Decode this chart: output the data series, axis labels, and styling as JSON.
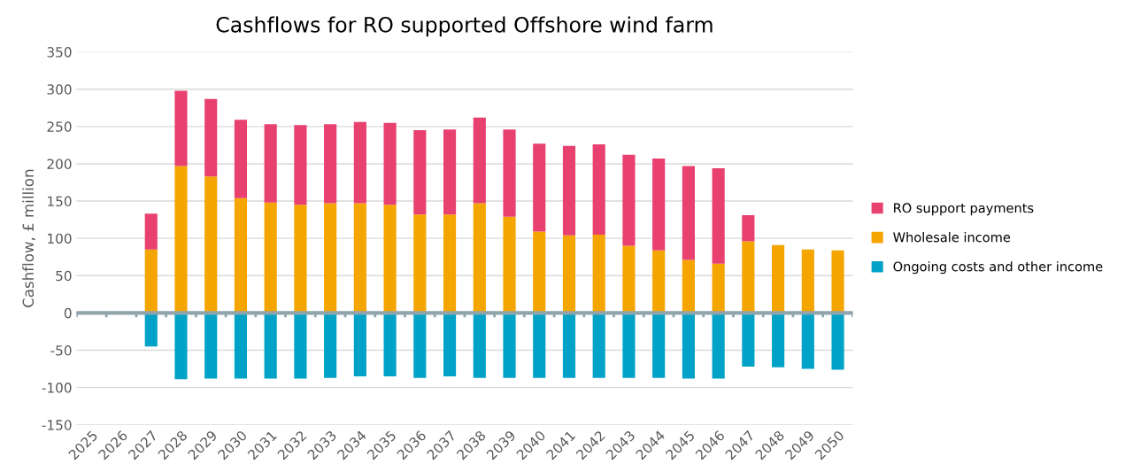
{
  "chart_data": {
    "type": "bar",
    "title": "Cashflows for RO supported Offshore wind farm",
    "ylabel": "Cashflow, £ million",
    "stacked": true,
    "categories": [
      "2025",
      "2026",
      "2027",
      "2028",
      "2029",
      "2030",
      "2031",
      "2032",
      "2033",
      "2034",
      "2035",
      "2036",
      "2037",
      "2038",
      "2039",
      "2040",
      "2041",
      "2042",
      "2043",
      "2044",
      "2045",
      "2046",
      "2047",
      "2048",
      "2049",
      "2050"
    ],
    "series": [
      {
        "name": "Wholesale income",
        "color": "#f5a500",
        "values": [
          null,
          null,
          85,
          197,
          183,
          154,
          148,
          145,
          147,
          147,
          145,
          132,
          132,
          147,
          129,
          109,
          104,
          105,
          90,
          84,
          71,
          66,
          96,
          91,
          85,
          84
        ]
      },
      {
        "name": "RO support payments",
        "color": "#e8416f",
        "values": [
          null,
          null,
          48,
          101,
          104,
          105,
          105,
          107,
          106,
          109,
          110,
          113,
          114,
          115,
          117,
          118,
          120,
          121,
          122,
          123,
          126,
          128,
          35,
          null,
          null,
          null
        ]
      },
      {
        "name": "Ongoing costs and other income",
        "color": "#00a3c7",
        "values": [
          null,
          null,
          -45,
          -89,
          -88,
          -88,
          -88,
          -88,
          -87,
          -85,
          -85,
          -87,
          -85,
          -87,
          -87,
          -87,
          -87,
          -87,
          -87,
          -87,
          -88,
          -88,
          -72,
          -73,
          -75,
          -76
        ]
      }
    ],
    "ylim": [
      -150,
      350
    ],
    "yticks": [
      -150,
      -100,
      -50,
      0,
      50,
      100,
      150,
      200,
      250,
      300,
      350
    ],
    "grid": "y",
    "legend": "right"
  }
}
